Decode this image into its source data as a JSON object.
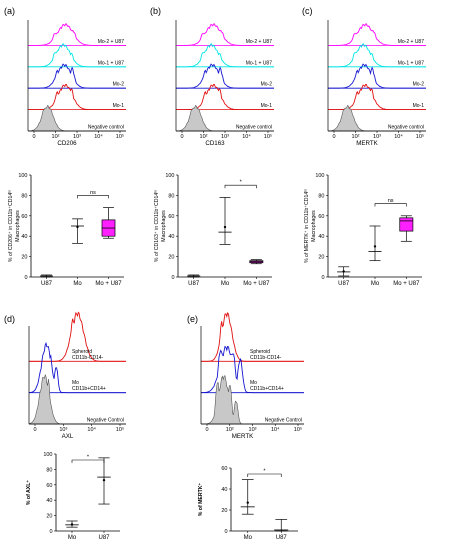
{
  "panels": [
    {
      "letter": "(a)",
      "histogram": {
        "marker": "CD206",
        "curves": [
          {
            "label": "Mo-2 + U87",
            "color": "#ff00ff"
          },
          {
            "label": "Mo-1 + U87",
            "color": "#00e5e5"
          },
          {
            "label": "Mo-2",
            "color": "#1515d0"
          },
          {
            "label": "Mo-1",
            "color": "#e01010"
          },
          {
            "label": "Negative control",
            "color": "#9a9a9a"
          }
        ],
        "xticks": [
          "0",
          "10²",
          "10³",
          "10⁴",
          "10⁵"
        ]
      },
      "plot": {
        "ylabel": "% of CD206⁺ in CD11b⁺CD14ˡᵒ Macrophages",
        "ylim": [
          0,
          100
        ],
        "yticks": [
          "0",
          "20",
          "40",
          "60",
          "80",
          "100"
        ],
        "categories": [
          "U87",
          "Mo",
          "Mo + U87"
        ],
        "annotation": "ns"
      }
    },
    {
      "letter": "(b)",
      "histogram": {
        "marker": "CD163",
        "curves": [
          {
            "label": "Mo-2 + U87",
            "color": "#ff00ff"
          },
          {
            "label": "Mo-1 + U87",
            "color": "#00e5e5"
          },
          {
            "label": "Mo-2",
            "color": "#1515d0"
          },
          {
            "label": "Mo-1",
            "color": "#e01010"
          },
          {
            "label": "Negative control",
            "color": "#9a9a9a"
          }
        ],
        "xticks": [
          "0",
          "10²",
          "10³",
          "10⁴",
          "10⁵"
        ]
      },
      "plot": {
        "ylabel": "% of CD163⁺ in CD11b⁺CD14ˡᵒ Macrophages",
        "ylim": [
          0,
          100
        ],
        "yticks": [
          "0",
          "20",
          "40",
          "60",
          "80",
          "100"
        ],
        "categories": [
          "U87",
          "Mo",
          "Mo + U87"
        ],
        "annotation": "*"
      }
    },
    {
      "letter": "(c)",
      "histogram": {
        "marker": "MERTK",
        "curves": [
          {
            "label": "Mo-2 + U87",
            "color": "#ff00ff"
          },
          {
            "label": "Mo-1 + U87",
            "color": "#00e5e5"
          },
          {
            "label": "Mo-2",
            "color": "#1515d0"
          },
          {
            "label": "Mo-1",
            "color": "#e01010"
          },
          {
            "label": "Negative control",
            "color": "#9a9a9a"
          }
        ],
        "xticks": [
          "0",
          "10²",
          "10³",
          "10⁴",
          "10⁵"
        ]
      },
      "plot": {
        "ylabel": "% of MERTK⁺ in CD11b⁺CD14ˡᵒ Macrophages",
        "ylim": [
          0,
          100
        ],
        "yticks": [
          "0",
          "20",
          "40",
          "60",
          "80",
          "100"
        ],
        "categories": [
          "U87",
          "Mo",
          "Mo + U87"
        ],
        "annotation": "ns"
      }
    },
    {
      "letter": "(d)",
      "histogram": {
        "marker": "AXL",
        "curves": [
          {
            "label": "Spheroid CD11b-CD14-",
            "color": "#e01010"
          },
          {
            "label": "Mo CD11b+CD14+",
            "color": "#1515d0"
          },
          {
            "label": "Negative Control",
            "color": "#9a9a9a"
          }
        ],
        "xticks": [
          "0",
          "10³",
          "10⁴",
          "10⁵"
        ]
      },
      "plot": {
        "ylabel": "% of AXL⁺",
        "ylim": [
          0,
          100
        ],
        "yticks": [
          "0",
          "20",
          "40",
          "60",
          "80",
          "100"
        ],
        "categories": [
          "Mo",
          "U87"
        ],
        "annotation": "*"
      }
    },
    {
      "letter": "(e)",
      "histogram": {
        "marker": "MERTK",
        "curves": [
          {
            "label": "Spheroid CD11b-CD14-",
            "color": "#e01010"
          },
          {
            "label": "Mo CD11b+CD14+",
            "color": "#1515d0"
          },
          {
            "label": "Negative Control",
            "color": "#9a9a9a"
          }
        ],
        "xticks": [
          "0",
          "10²",
          "10³",
          "10⁴",
          "10⁵"
        ]
      },
      "plot": {
        "ylabel": "% of MERTK⁺",
        "ylim": [
          0,
          60
        ],
        "yticks": [
          "0",
          "20",
          "40",
          "60"
        ],
        "categories": [
          "Mo",
          "U87"
        ],
        "annotation": "*"
      }
    }
  ],
  "chart_data": [
    {
      "type": "box",
      "ylabel": "% of CD206⁺ in CD11b⁺CD14ˡᵒ Macrophages",
      "ylim": [
        0,
        100
      ],
      "categories": [
        "U87",
        "Mo",
        "Mo + U87"
      ],
      "series": [
        {
          "values": [
            {
              "min": 0,
              "q1": 0.5,
              "median": 1,
              "q3": 1.5,
              "max": 2
            },
            {
              "min": 33,
              "q1": 43,
              "median": 50,
              "q3": 55,
              "max": 57
            },
            {
              "min": 38,
              "q1": 40,
              "median": 48,
              "q3": 56,
              "max": 68
            }
          ]
        }
      ],
      "annotation": "ns"
    },
    {
      "type": "box",
      "ylabel": "% of CD163⁺ in CD11b⁺CD14ˡᵒ Macrophages",
      "ylim": [
        0,
        100
      ],
      "categories": [
        "U87",
        "Mo",
        "Mo + U87"
      ],
      "series": [
        {
          "values": [
            {
              "min": 0,
              "q1": 0.5,
              "median": 1,
              "q3": 1.5,
              "max": 2
            },
            {
              "min": 32,
              "q1": 38,
              "median": 44,
              "q3": 60,
              "max": 78
            },
            {
              "min": 13,
              "q1": 14,
              "median": 15,
              "q3": 16,
              "max": 17
            }
          ]
        }
      ],
      "annotation": "*"
    },
    {
      "type": "box",
      "ylabel": "% of MERTK⁺ in CD11b⁺CD14ˡᵒ Macrophages",
      "ylim": [
        0,
        100
      ],
      "categories": [
        "U87",
        "Mo",
        "Mo + U87"
      ],
      "series": [
        {
          "values": [
            {
              "min": 1,
              "q1": 3,
              "median": 5,
              "q3": 8,
              "max": 10
            },
            {
              "min": 16,
              "q1": 20,
              "median": 25,
              "q3": 40,
              "max": 50
            },
            {
              "min": 35,
              "q1": 45,
              "median": 55,
              "q3": 58,
              "max": 60
            }
          ]
        }
      ],
      "annotation": "ns"
    },
    {
      "type": "box",
      "ylabel": "% of AXL⁺",
      "ylim": [
        0,
        100
      ],
      "categories": [
        "Mo",
        "U87"
      ],
      "series": [
        {
          "values": [
            {
              "min": 5,
              "q1": 6,
              "median": 8,
              "q3": 11,
              "max": 13
            },
            {
              "min": 35,
              "q1": 50,
              "median": 70,
              "q3": 82,
              "max": 95
            }
          ]
        }
      ],
      "annotation": "*"
    },
    {
      "type": "box",
      "ylabel": "% of MERTK⁺",
      "ylim": [
        0,
        60
      ],
      "categories": [
        "Mo",
        "U87"
      ],
      "series": [
        {
          "values": [
            {
              "min": 16,
              "q1": 19,
              "median": 23,
              "q3": 35,
              "max": 49
            },
            {
              "min": 0,
              "q1": 0.5,
              "median": 1,
              "q3": 1.5,
              "max": 11
            }
          ]
        }
      ],
      "annotation": "*"
    }
  ]
}
